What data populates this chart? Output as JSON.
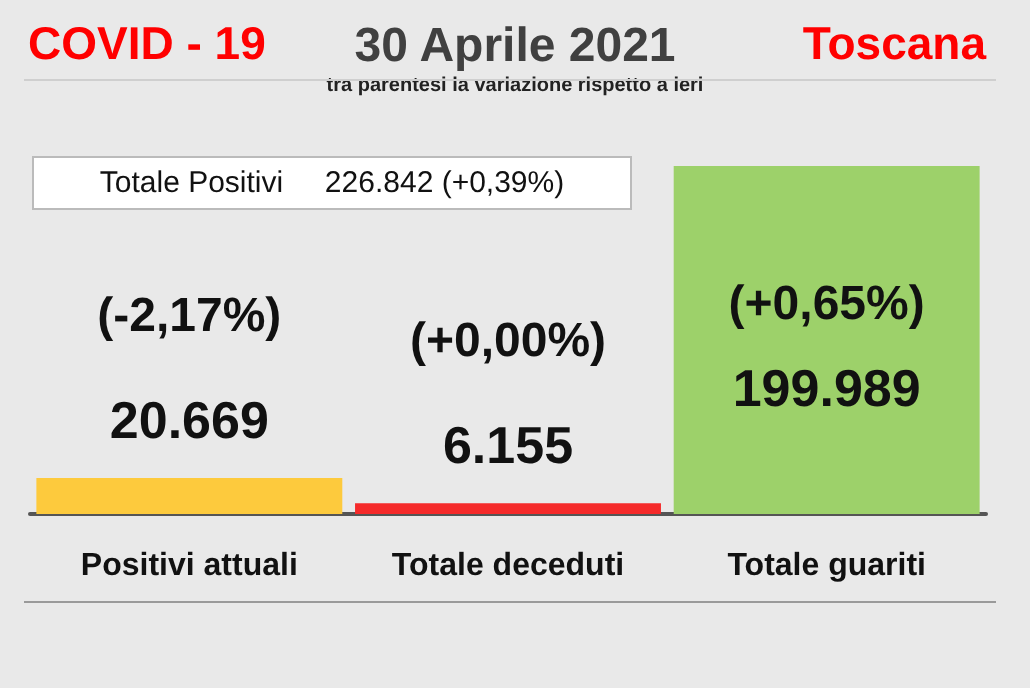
{
  "chart_data": {
    "type": "bar",
    "title": "30 Aprile 2021",
    "subtitle": "tra parentesi la variazione rispetto a ieri",
    "categories": [
      "Positivi attuali",
      "Totale deceduti",
      "Totale guariti"
    ],
    "values": [
      20669,
      6155,
      199989
    ],
    "colors": [
      "#fdca3d",
      "#f52a2a",
      "#9dd16a"
    ],
    "value_labels": [
      "20.669",
      "6.155",
      "199.989"
    ],
    "annotations": [
      "COVID - 19",
      "Toscana",
      "Totale Positivi     226.842 (+0,39%)",
      "(-2,17%)",
      "(+0,00%)",
      "(+0,65%)"
    ]
  }
}
